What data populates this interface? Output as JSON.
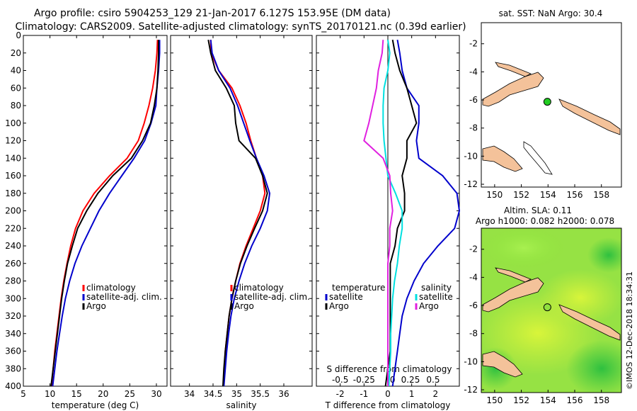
{
  "header": {
    "line1": "Argo profile: csiro 5904253_129 21-Jan-2017 6.127S 153.95E (DM data)",
    "line2": "Climatology: CARS2009. Satellite-adjusted climatology: synTS_20170121.nc (0.39d earlier)"
  },
  "colors": {
    "climatology": "#ff0000",
    "satellite": "#0000cc",
    "argo": "#000000",
    "t_satellite": "#00e0e0",
    "s_argo": "#e020e0",
    "land": "#f4c29a",
    "sla_green": "#90e040"
  },
  "depth_axis": {
    "ticks": [
      0,
      20,
      40,
      60,
      80,
      100,
      120,
      140,
      160,
      180,
      200,
      220,
      240,
      260,
      280,
      300,
      320,
      340,
      360,
      380,
      400
    ],
    "range": [
      0,
      400
    ]
  },
  "chart_data": [
    {
      "type": "line",
      "id": "temperature",
      "xlabel": "temperature (deg C)",
      "xlim": [
        5,
        32
      ],
      "xticks": [
        5,
        10,
        15,
        20,
        25,
        30
      ],
      "y_is_depth": true,
      "legend": [
        "climatology",
        "satellite-adj. clim.",
        "Argo"
      ],
      "series": [
        {
          "name": "climatology",
          "color": "climatology",
          "depth": [
            5,
            20,
            40,
            60,
            80,
            100,
            120,
            140,
            160,
            180,
            200,
            220,
            240,
            260,
            280,
            300,
            320,
            340,
            360,
            380,
            400
          ],
          "values": [
            30.2,
            30.1,
            29.8,
            29.3,
            28.6,
            27.7,
            26.6,
            24.5,
            21.2,
            18.3,
            16.2,
            14.8,
            13.9,
            13.2,
            12.6,
            12.1,
            11.7,
            11.3,
            10.9,
            10.6,
            10.3
          ]
        },
        {
          "name": "satellite-adj. clim.",
          "color": "satellite",
          "depth": [
            5,
            20,
            40,
            60,
            80,
            100,
            120,
            140,
            160,
            180,
            200,
            220,
            240,
            260,
            280,
            300,
            320,
            340,
            360,
            380,
            400
          ],
          "values": [
            30.6,
            30.6,
            30.4,
            30.1,
            29.9,
            29.0,
            27.8,
            25.8,
            23.5,
            21.2,
            19.2,
            17.6,
            16.0,
            14.7,
            13.7,
            12.9,
            12.3,
            11.8,
            11.3,
            10.9,
            10.5
          ]
        },
        {
          "name": "Argo",
          "color": "argo",
          "depth": [
            5,
            20,
            40,
            60,
            80,
            100,
            120,
            140,
            160,
            180,
            200,
            220,
            240,
            260,
            280,
            300,
            320,
            340,
            360,
            380,
            400
          ],
          "values": [
            30.4,
            30.4,
            30.3,
            30.1,
            29.6,
            28.9,
            27.4,
            25.3,
            21.8,
            19.0,
            16.9,
            15.2,
            14.2,
            13.3,
            12.7,
            12.2,
            11.8,
            11.4,
            11.0,
            10.6,
            10.2
          ]
        }
      ]
    },
    {
      "type": "line",
      "id": "salinity",
      "xlabel": "salinity",
      "xlim": [
        33.6,
        36.6
      ],
      "xticks": [
        34,
        34.5,
        35,
        35.5,
        36
      ],
      "y_is_depth": true,
      "legend": [
        "climatology",
        "satellite-adj. clim.",
        "Argo"
      ],
      "series": [
        {
          "name": "climatology",
          "color": "climatology",
          "depth": [
            5,
            20,
            40,
            60,
            80,
            100,
            120,
            140,
            160,
            180,
            200,
            220,
            240,
            260,
            280,
            300,
            320,
            340,
            360,
            380,
            400
          ],
          "values": [
            34.45,
            34.46,
            34.62,
            34.9,
            35.07,
            35.2,
            35.3,
            35.42,
            35.55,
            35.6,
            35.5,
            35.35,
            35.2,
            35.07,
            34.98,
            34.9,
            34.84,
            34.8,
            34.76,
            34.74,
            34.72
          ]
        },
        {
          "name": "satellite-adj. clim.",
          "color": "satellite",
          "depth": [
            5,
            20,
            40,
            60,
            80,
            100,
            120,
            140,
            160,
            180,
            200,
            220,
            240,
            260,
            280,
            300,
            320,
            340,
            360,
            380,
            400
          ],
          "values": [
            34.45,
            34.48,
            34.62,
            34.86,
            35.02,
            35.15,
            35.28,
            35.42,
            35.58,
            35.7,
            35.65,
            35.5,
            35.32,
            35.17,
            35.05,
            34.95,
            34.88,
            34.83,
            34.79,
            34.76,
            34.73
          ]
        },
        {
          "name": "Argo",
          "color": "argo",
          "depth": [
            5,
            20,
            40,
            60,
            80,
            100,
            120,
            140,
            160,
            180,
            200,
            220,
            240,
            260,
            280,
            300,
            320,
            340,
            360,
            380,
            400
          ],
          "values": [
            34.4,
            34.45,
            34.55,
            34.78,
            34.95,
            34.98,
            35.05,
            35.4,
            35.55,
            35.65,
            35.55,
            35.38,
            35.22,
            35.08,
            34.98,
            34.9,
            34.84,
            34.8,
            34.76,
            34.73,
            34.71
          ]
        }
      ]
    },
    {
      "type": "line",
      "id": "differences",
      "xlabel": "T difference from climatology",
      "xlabel_top": "S difference from climatology",
      "xlim": [
        -3,
        3
      ],
      "xticks": [
        -2,
        -1,
        0,
        1,
        2
      ],
      "xticks_top": [
        "-0.5",
        "-0.25",
        "0",
        "0.25",
        "0.5"
      ],
      "y_is_depth": true,
      "legend_temperature": {
        "heading": "temperature",
        "items": [
          "satellite",
          "Argo"
        ]
      },
      "legend_salinity": {
        "heading": "salinity",
        "items": [
          "satellite",
          "Argo"
        ]
      },
      "series": [
        {
          "name": "T satellite",
          "color": "satellite",
          "depth": [
            5,
            20,
            40,
            60,
            80,
            100,
            120,
            140,
            160,
            180,
            200,
            220,
            240,
            260,
            280,
            300,
            320,
            340,
            360,
            380,
            400
          ],
          "values": [
            0.4,
            0.5,
            0.6,
            0.8,
            1.3,
            1.3,
            1.2,
            1.3,
            2.3,
            2.9,
            3.0,
            2.8,
            2.1,
            1.5,
            1.1,
            0.8,
            0.6,
            0.5,
            0.4,
            0.3,
            0.2
          ]
        },
        {
          "name": "T Argo",
          "color": "argo",
          "depth": [
            5,
            20,
            40,
            60,
            80,
            100,
            120,
            140,
            160,
            180,
            200,
            220,
            240,
            260,
            280,
            300,
            320,
            340,
            360,
            380,
            400
          ],
          "values": [
            0.2,
            0.3,
            0.5,
            0.8,
            1.0,
            1.2,
            0.8,
            0.8,
            0.6,
            0.7,
            0.7,
            0.4,
            0.3,
            0.1,
            0.1,
            0.1,
            0.1,
            0.1,
            0.1,
            0.0,
            -0.1
          ]
        },
        {
          "name": "S satellite",
          "color": "t_satellite",
          "depth": [
            5,
            20,
            40,
            60,
            80,
            100,
            120,
            140,
            160,
            180,
            200,
            220,
            240,
            260,
            280,
            300,
            320,
            340,
            360,
            380,
            400
          ],
          "values": [
            0.0,
            0.02,
            0.0,
            -0.04,
            -0.05,
            -0.05,
            -0.04,
            -0.02,
            0.0,
            0.08,
            0.15,
            0.15,
            0.12,
            0.1,
            0.07,
            0.05,
            0.04,
            0.03,
            0.03,
            0.02,
            0.01
          ]
        },
        {
          "name": "S Argo",
          "color": "s_argo",
          "depth": [
            5,
            20,
            40,
            60,
            80,
            100,
            120,
            140,
            160,
            180,
            200,
            220,
            240,
            260,
            280,
            300,
            320,
            340,
            360,
            380,
            400
          ],
          "values": [
            -0.05,
            -0.06,
            -0.1,
            -0.12,
            -0.16,
            -0.2,
            -0.25,
            -0.05,
            0.02,
            0.03,
            0.05,
            0.02,
            0.02,
            0.0,
            0.0,
            0.0,
            0.0,
            0.0,
            0.0,
            0.0,
            0.0
          ]
        }
      ]
    }
  ],
  "maps": {
    "sst": {
      "title": "sat. SST: NaN Argo: 30.4",
      "lon_ticks": [
        "150",
        "152",
        "154",
        "156",
        "158"
      ],
      "lat_ticks": [
        "-2",
        "-4",
        "-6",
        "-8",
        "-10",
        "-12"
      ],
      "lon_range": [
        149,
        159.5
      ],
      "lat_range": [
        -12.2,
        -0.5
      ],
      "argo_lon": 153.95,
      "argo_lat": -6.127
    },
    "sla": {
      "title1": "Altim. SLA: 0.11",
      "title2": "Argo h1000: 0.082 h2000: 0.078",
      "lon_ticks": [
        "150",
        "152",
        "154",
        "156",
        "158"
      ],
      "lat_ticks": [
        "-2",
        "-4",
        "-6",
        "-8",
        "-10",
        "-12"
      ],
      "lon_range": [
        149,
        159.5
      ],
      "lat_range": [
        -12.2,
        -0.5
      ],
      "argo_lon": 153.95,
      "argo_lat": -6.127
    }
  },
  "watermark": "©IMOS 12-Dec-2018 18:34:31"
}
